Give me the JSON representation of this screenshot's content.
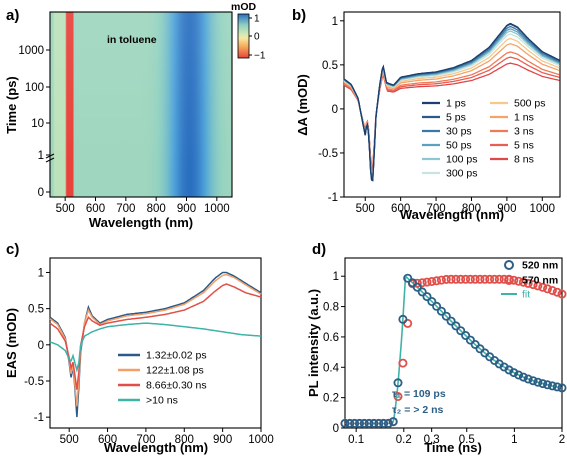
{
  "chart_data": [
    {
      "panel": "a)",
      "type": "heatmap",
      "annotation": "in toluene",
      "xlabel": "Wavelength (nm)",
      "ylabel": "Time (ps)",
      "xlim": [
        450,
        1050
      ],
      "xticks": [
        "500",
        "600",
        "700",
        "800",
        "900",
        "1000"
      ],
      "yticks": [
        "0",
        "1",
        "10",
        "100",
        "1000"
      ],
      "colorbar": {
        "label": "mOD",
        "ticks": [
          "1",
          "0",
          "−1"
        ],
        "range": [
          -1,
          1
        ]
      },
      "colormap": [
        "#e8423a",
        "#f5a65a",
        "#f8e7a2",
        "#cfe9b8",
        "#8fd0c1",
        "#4fa3d9",
        "#2a6fc0"
      ],
      "features": [
        {
          "wavelength_range": [
            465,
            510
          ],
          "value": 0.1
        },
        {
          "wavelength_range": [
            505,
            525
          ],
          "value": -1.0
        },
        {
          "wavelength_range": [
            840,
            1000
          ],
          "value": 1.0,
          "center": 910
        }
      ]
    },
    {
      "panel": "b)",
      "type": "line",
      "xlabel": "Wavelength (nm)",
      "ylabel": "ΔA (mOD)",
      "xlim": [
        440,
        1050
      ],
      "ylim": [
        -1,
        1.1
      ],
      "xticks": [
        500,
        600,
        700,
        800,
        900,
        1000
      ],
      "yticks": [
        -1,
        -0.5,
        0,
        0.5,
        1
      ],
      "series": [
        {
          "name": "1 ps",
          "color": "#1c3f6e",
          "scale": 1.0
        },
        {
          "name": "5 ps",
          "color": "#2b5a88",
          "scale": 0.99
        },
        {
          "name": "30 ps",
          "color": "#3d77a3",
          "scale": 0.96
        },
        {
          "name": "50 ps",
          "color": "#5aa0bf",
          "scale": 0.93
        },
        {
          "name": "100 ps",
          "color": "#8fc7cf",
          "scale": 0.9
        },
        {
          "name": "300 ps",
          "color": "#c9e3df",
          "scale": 0.86
        },
        {
          "name": "500 ps",
          "color": "#f6c98a",
          "scale": 0.8
        },
        {
          "name": "1 ns",
          "color": "#f4a36a",
          "scale": 0.73
        },
        {
          "name": "3 ns",
          "color": "#ee7b58",
          "scale": 0.62
        },
        {
          "name": "5 ns",
          "color": "#e65f52",
          "scale": 0.55
        },
        {
          "name": "8 ns",
          "color": "#e0464a",
          "scale": 0.47
        }
      ],
      "reference_spectrum": {
        "x": [
          440,
          460,
          480,
          490,
          500,
          505,
          510,
          515,
          520,
          525,
          530,
          540,
          550,
          555,
          560,
          580,
          600,
          650,
          700,
          750,
          800,
          850,
          880,
          900,
          910,
          930,
          960,
          1000,
          1050
        ],
        "y": [
          0.34,
          0.28,
          0.12,
          -0.1,
          -0.3,
          -0.15,
          -0.3,
          -0.7,
          -0.88,
          -0.55,
          -0.1,
          0.25,
          0.5,
          0.4,
          0.3,
          0.27,
          0.36,
          0.4,
          0.42,
          0.47,
          0.55,
          0.7,
          0.85,
          0.95,
          0.97,
          0.93,
          0.8,
          0.65,
          0.55
        ]
      }
    },
    {
      "panel": "c)",
      "type": "line",
      "xlabel": "Wavelength (nm)",
      "ylabel": "EAS (mOD)",
      "xlim": [
        450,
        1000
      ],
      "ylim": [
        -1.15,
        1.2
      ],
      "xticks": [
        500,
        600,
        700,
        800,
        900,
        1000
      ],
      "yticks": [
        -1,
        -0.5,
        0,
        0.5,
        1
      ],
      "series": [
        {
          "name": "1.32±0.02 ps",
          "color": "#2a5a88",
          "x": [
            450,
            470,
            490,
            500,
            505,
            510,
            515,
            520,
            525,
            530,
            540,
            550,
            560,
            580,
            600,
            650,
            700,
            750,
            800,
            850,
            880,
            900,
            910,
            930,
            960,
            1000
          ],
          "y": [
            0.38,
            0.3,
            0.1,
            -0.25,
            -0.45,
            -0.3,
            -0.6,
            -1.0,
            -0.6,
            -0.1,
            0.3,
            0.52,
            0.4,
            0.3,
            0.35,
            0.42,
            0.45,
            0.5,
            0.58,
            0.75,
            0.92,
            1.0,
            1.0,
            0.95,
            0.85,
            0.72
          ]
        },
        {
          "name": "122±1.08 ps",
          "color": "#f2a06a",
          "x": [
            450,
            470,
            490,
            500,
            505,
            510,
            515,
            520,
            525,
            530,
            540,
            550,
            560,
            580,
            600,
            650,
            700,
            750,
            800,
            850,
            880,
            900,
            910,
            930,
            960,
            1000
          ],
          "y": [
            0.36,
            0.28,
            0.08,
            -0.22,
            -0.4,
            -0.28,
            -0.55,
            -0.85,
            -0.5,
            -0.05,
            0.3,
            0.48,
            0.38,
            0.28,
            0.33,
            0.4,
            0.43,
            0.48,
            0.56,
            0.72,
            0.88,
            0.96,
            0.97,
            0.93,
            0.83,
            0.7
          ]
        },
        {
          "name": "8.66±0.30 ns",
          "color": "#e0504a",
          "x": [
            450,
            470,
            490,
            500,
            505,
            510,
            515,
            520,
            525,
            530,
            540,
            550,
            560,
            580,
            600,
            650,
            700,
            750,
            800,
            850,
            880,
            900,
            910,
            930,
            960,
            1000
          ],
          "y": [
            0.3,
            0.22,
            0.05,
            -0.18,
            -0.32,
            -0.24,
            -0.42,
            -0.62,
            -0.38,
            0.0,
            0.25,
            0.38,
            0.33,
            0.27,
            0.3,
            0.35,
            0.38,
            0.42,
            0.48,
            0.6,
            0.74,
            0.82,
            0.84,
            0.8,
            0.72,
            0.66
          ]
        },
        {
          "name": ">10 ns",
          "color": "#3fb3a8",
          "x": [
            450,
            470,
            490,
            500,
            505,
            510,
            515,
            520,
            525,
            530,
            540,
            560,
            580,
            600,
            650,
            700,
            750,
            800,
            850,
            900,
            950,
            1000
          ],
          "y": [
            0.04,
            0.0,
            -0.08,
            -0.2,
            -0.22,
            -0.15,
            -0.25,
            -0.35,
            -0.25,
            0.0,
            0.12,
            0.18,
            0.22,
            0.25,
            0.28,
            0.3,
            0.28,
            0.25,
            0.22,
            0.18,
            0.14,
            0.12
          ]
        }
      ]
    },
    {
      "panel": "d)",
      "type": "scatter",
      "xlabel": "Time (ns)",
      "ylabel": "PL intensity (a.u.)",
      "xscale": "log",
      "xlim": [
        0.085,
        2.0
      ],
      "ylim": [
        0,
        1.12
      ],
      "xticks": [
        "0.1",
        "0.2",
        "0.3",
        "0.5",
        "1",
        "2"
      ],
      "xtick_values": [
        0.1,
        0.2,
        0.3,
        0.5,
        1,
        2
      ],
      "yticks": [
        0,
        0.2,
        0.4,
        0.6,
        0.8,
        1
      ],
      "series": [
        {
          "name": "520 nm",
          "color": "#2c5f86",
          "rise_end": 0.205,
          "tau_fast": 0.109,
          "tail": 0.32
        },
        {
          "name": "570 nm",
          "color": "#e0504a",
          "rise_end": 0.225,
          "plateau": 0.98,
          "end": 0.88
        }
      ],
      "fit": {
        "name": "fit",
        "color": "#3fb3a8"
      },
      "annotations": [
        "τ₁ = 109 ps",
        "τ₂ = > 2 ns"
      ]
    }
  ]
}
